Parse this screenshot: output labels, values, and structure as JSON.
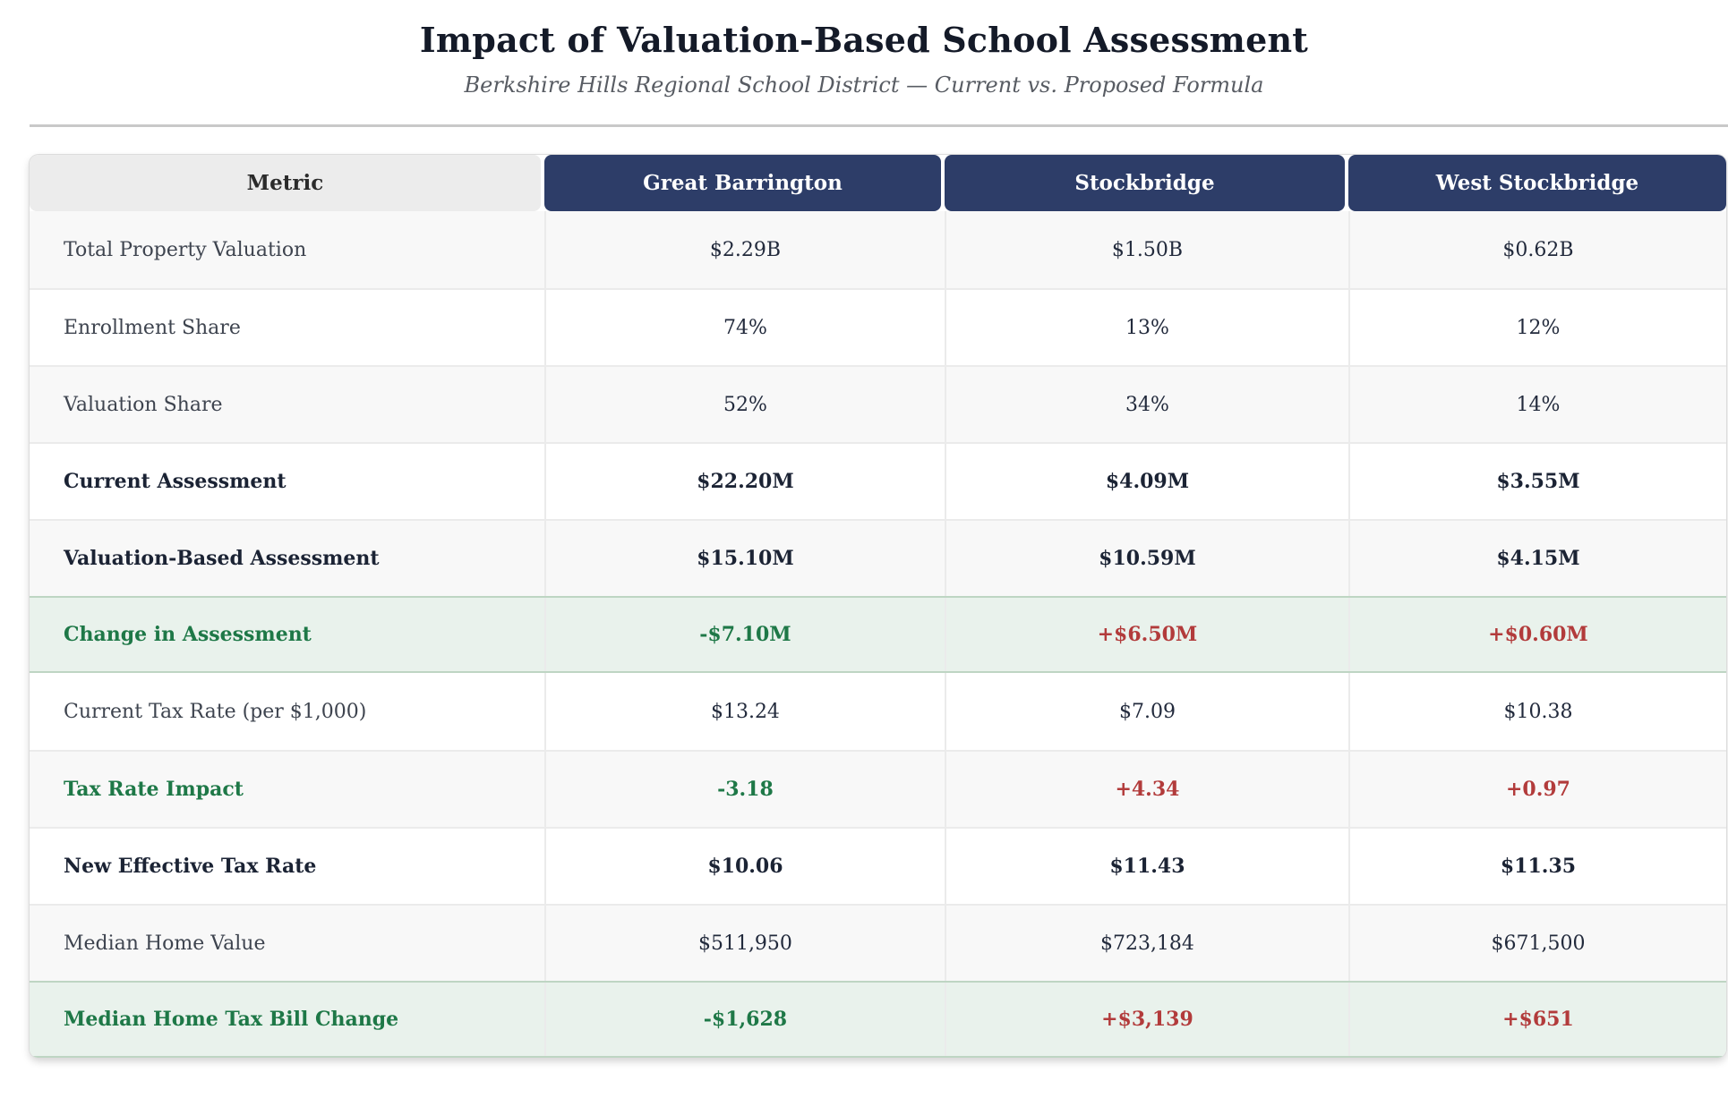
{
  "chart_data": {
    "type": "table",
    "title": "Impact of Valuation-Based School Assessment",
    "subtitle": "Berkshire Hills Regional School District — Current vs. Proposed Formula",
    "columns": [
      "Metric",
      "Great Barrington",
      "Stockbridge",
      "West Stockbridge"
    ],
    "rows": [
      {
        "label": "Total Property Valuation",
        "values": [
          "$2.29B",
          "$1.50B",
          "$0.62B"
        ],
        "row_class": "stripe",
        "emphasis": "regular"
      },
      {
        "label": "Enrollment Share",
        "values": [
          "74%",
          "13%",
          "12%"
        ],
        "row_class": "plain",
        "emphasis": "regular"
      },
      {
        "label": "Valuation Share",
        "values": [
          "52%",
          "34%",
          "14%"
        ],
        "row_class": "stripe",
        "emphasis": "regular"
      },
      {
        "label": "Current Assessment",
        "values": [
          "$22.20M",
          "$4.09M",
          "$3.55M"
        ],
        "row_class": "plain",
        "emphasis": "bold"
      },
      {
        "label": "Valuation-Based Assessment",
        "values": [
          "$15.10M",
          "$10.59M",
          "$4.15M"
        ],
        "row_class": "stripe",
        "emphasis": "bold"
      },
      {
        "label": "Change in Assessment",
        "values": [
          "-$7.10M",
          "+$6.50M",
          "+$0.60M"
        ],
        "row_class": "green",
        "emphasis": "bold",
        "label_class": "green-text",
        "value_classes": [
          "green-text",
          "red-text",
          "red-text"
        ]
      },
      {
        "label": "Current Tax Rate (per $1,000)",
        "values": [
          "$13.24",
          "$7.09",
          "$10.38"
        ],
        "row_class": "plain",
        "emphasis": "regular"
      },
      {
        "label": "Tax Rate Impact",
        "values": [
          "-3.18",
          "+4.34",
          "+0.97"
        ],
        "row_class": "stripe",
        "emphasis": "bold",
        "label_class": "green-text",
        "value_classes": [
          "green-text",
          "red-text",
          "red-text"
        ]
      },
      {
        "label": "New Effective Tax Rate",
        "values": [
          "$10.06",
          "$11.43",
          "$11.35"
        ],
        "row_class": "plain",
        "emphasis": "bold"
      },
      {
        "label": "Median Home Value",
        "values": [
          "$511,950",
          "$723,184",
          "$671,500"
        ],
        "row_class": "stripe",
        "emphasis": "regular"
      },
      {
        "label": "Median Home Tax Bill Change",
        "values": [
          "-$1,628",
          "+$3,139",
          "+$651"
        ],
        "row_class": "green",
        "emphasis": "bold",
        "label_class": "green-text",
        "value_classes": [
          "green-text",
          "red-text",
          "red-text"
        ]
      }
    ]
  },
  "colors": {
    "navy": "#2d3d68",
    "header-text": "#ffffff",
    "metric-header-bg": "#ececec",
    "stripe-bg": "#f8f8f8",
    "green-row-bg": "#e9f2ec",
    "green-row-border": "#bed5c3",
    "green-text": "#1e7847",
    "red-text": "#b23b3b",
    "dark-text": "#1b2334",
    "label-text": "#3e444f",
    "subtitle-text": "#585c63",
    "divider": "#c9c9c9"
  }
}
